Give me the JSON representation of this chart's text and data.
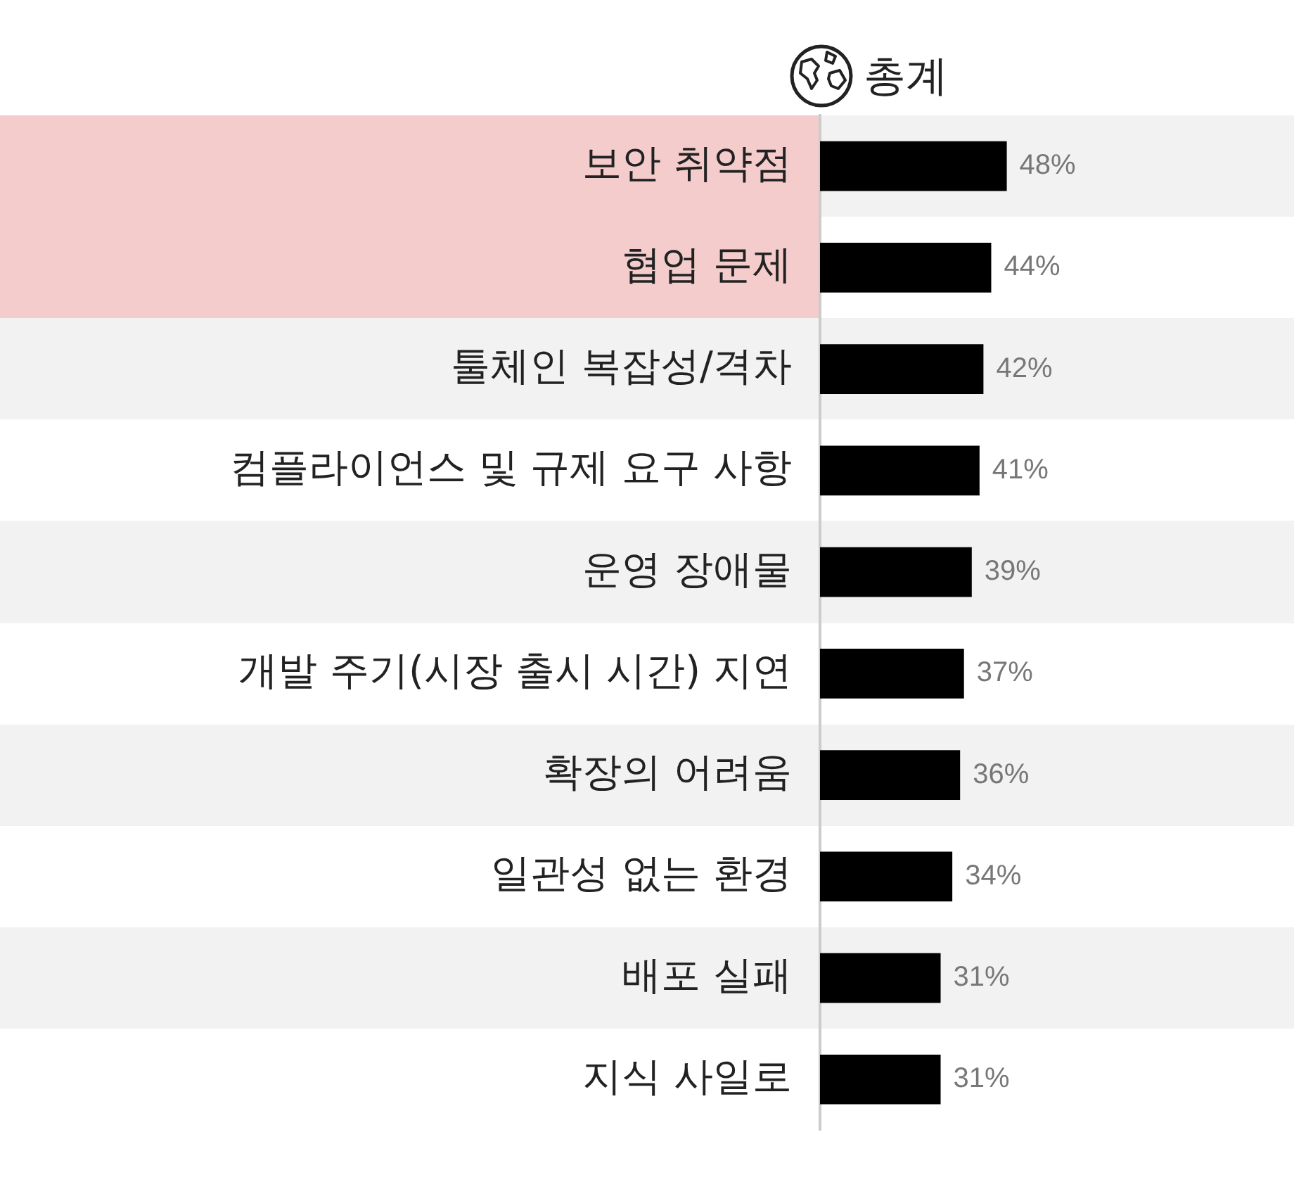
{
  "chart_data": {
    "type": "bar",
    "orientation": "horizontal",
    "title": "총계",
    "categories": [
      "보안 취약점",
      "협업 문제",
      "툴체인 복잡성/격차",
      "컴플라이언스 및 규제 요구 사항",
      "운영 장애물",
      "개발 주기(시장 출시 시간) 지연",
      "확장의 어려움",
      "일관성 없는 환경",
      "배포 실패",
      "지식 사일로"
    ],
    "values": [
      48,
      44,
      42,
      41,
      39,
      37,
      36,
      34,
      31,
      31
    ],
    "color": "#000000",
    "value_labels": [
      "48%",
      "44%",
      "42%",
      "41%",
      "39%",
      "37%",
      "36%",
      "34%",
      "31%",
      "31%"
    ],
    "grid": false,
    "legend": false,
    "tick_labels": "y"
  }
}
